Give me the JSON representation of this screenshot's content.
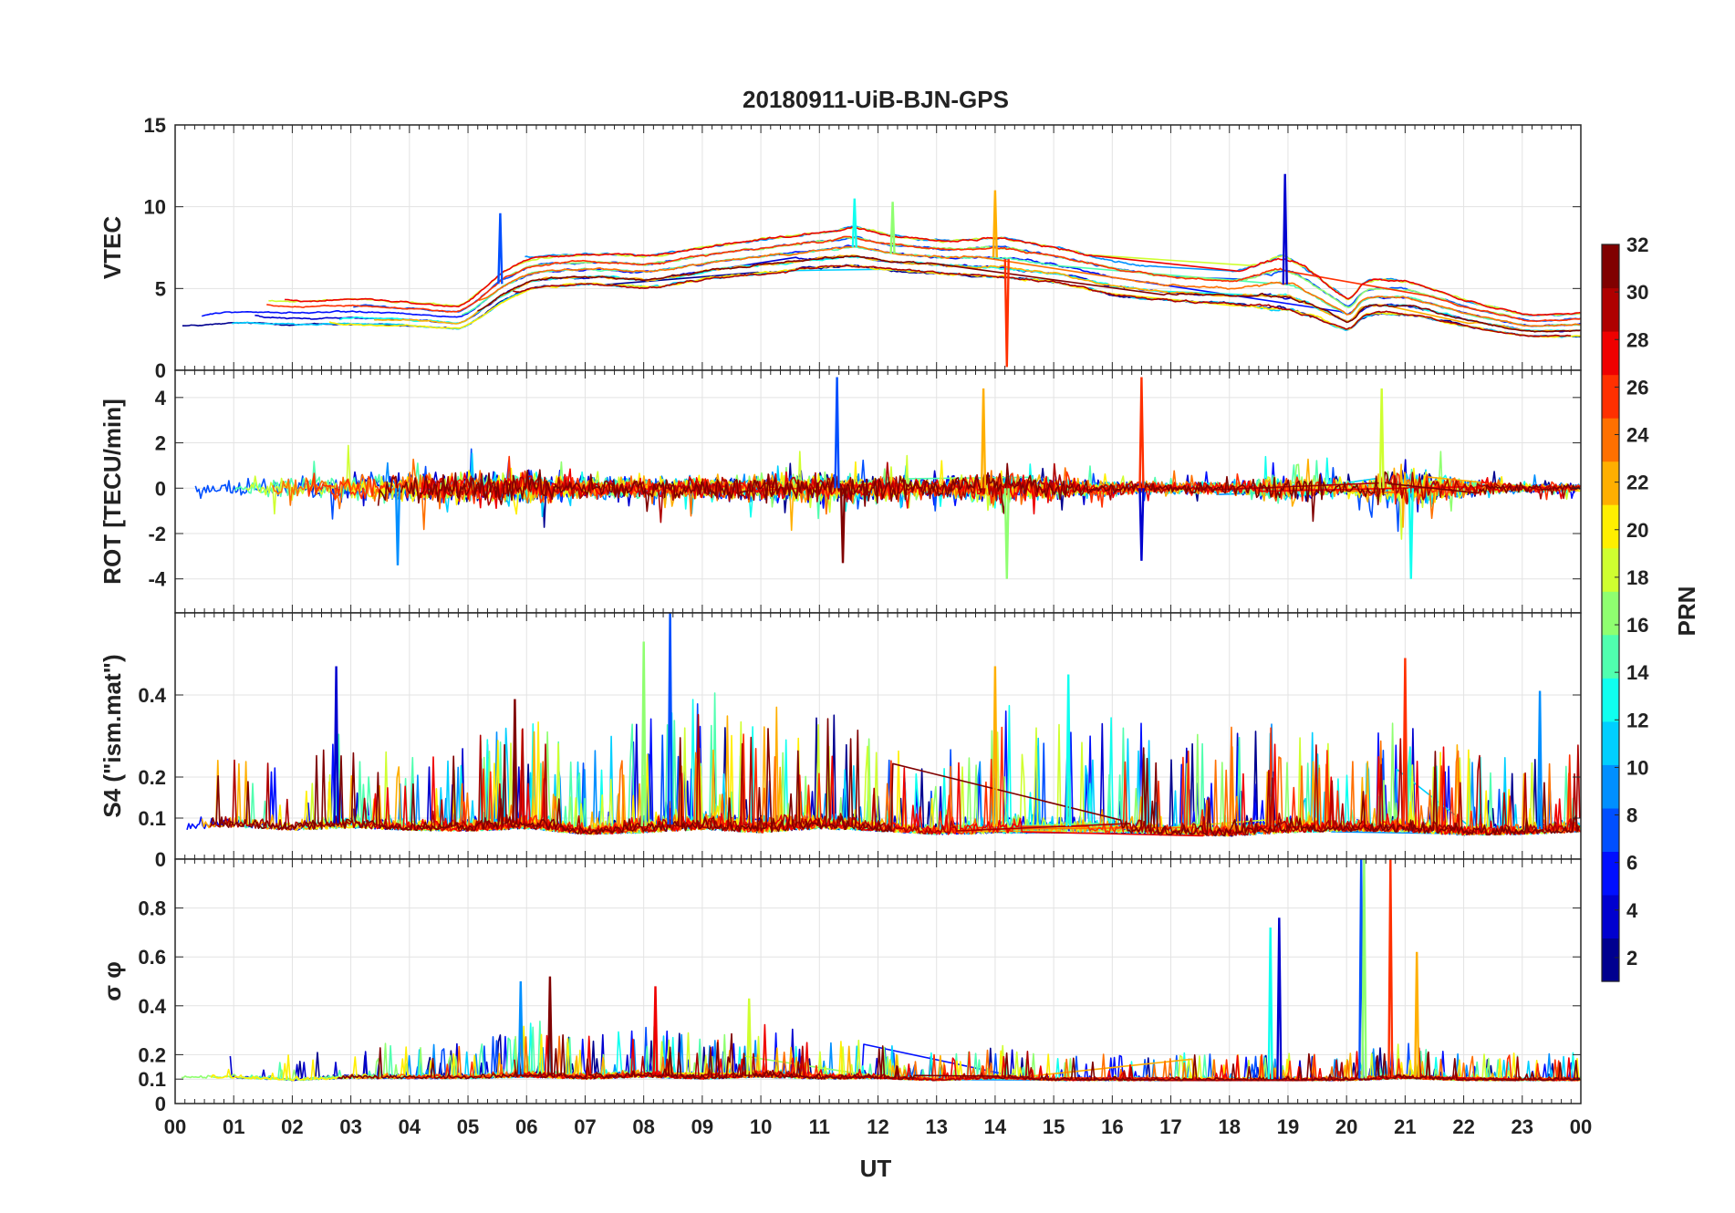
{
  "chart_data": {
    "type": "line",
    "title": "20180911-UiB-BJN-GPS",
    "xlabel": "UT",
    "x_tick_labels": [
      "00",
      "01",
      "02",
      "03",
      "04",
      "05",
      "06",
      "07",
      "08",
      "09",
      "10",
      "11",
      "12",
      "13",
      "14",
      "15",
      "16",
      "17",
      "18",
      "19",
      "20",
      "21",
      "22",
      "23",
      "00"
    ],
    "xlim": [
      0,
      24
    ],
    "grid": true,
    "colorbar": {
      "label": "PRN",
      "range": [
        1,
        32
      ],
      "ticks": [
        2,
        4,
        6,
        8,
        10,
        12,
        14,
        16,
        18,
        20,
        22,
        24,
        26,
        28,
        30,
        32
      ],
      "colormap": "jet",
      "colors": [
        "#00008f",
        "#0000cf",
        "#000fff",
        "#004fff",
        "#008fff",
        "#00cfff",
        "#10ffef",
        "#50ffaf",
        "#8fff70",
        "#cfff30",
        "#ffef00",
        "#ffaf00",
        "#ff7000",
        "#ff3000",
        "#ef0000",
        "#af0000",
        "#800000"
      ]
    },
    "panels": [
      {
        "id": "vtec",
        "ylabel": "VTEC",
        "ylim": [
          0,
          15
        ],
        "y_ticks": [
          0,
          5,
          10,
          15
        ],
        "y_tick_labels": [
          "0",
          "5",
          "10",
          "15"
        ],
        "envelope": {
          "hours": [
            0,
            1,
            2,
            3,
            4,
            4.8,
            5.5,
            6,
            7,
            8,
            9,
            10,
            11,
            11.5,
            12,
            13,
            14,
            15,
            16,
            17,
            18,
            18.8,
            19,
            20,
            20.2,
            21,
            22,
            23,
            24
          ],
          "mean": [
            3.3,
            3.6,
            3.5,
            3.6,
            3.4,
            3.2,
            5.2,
            6.0,
            6.2,
            6.0,
            6.6,
            7.0,
            7.4,
            7.6,
            7.2,
            6.9,
            6.9,
            6.4,
            5.6,
            5.2,
            5.0,
            5.4,
            5.2,
            3.2,
            4.6,
            4.4,
            3.4,
            2.7,
            2.8
          ],
          "spread": [
            0.9,
            1.0,
            1.0,
            1.1,
            1.0,
            1.0,
            1.3,
            1.3,
            1.3,
            1.4,
            1.4,
            1.5,
            1.5,
            1.7,
            1.5,
            1.4,
            1.7,
            1.5,
            1.5,
            1.4,
            1.3,
            2.4,
            2.2,
            1.2,
            1.5,
            1.4,
            1.1,
            0.9,
            1.0
          ]
        },
        "spikes": [
          {
            "hour": 5.55,
            "value": 9.6
          },
          {
            "hour": 12.25,
            "value": 10.3
          },
          {
            "hour": 14.2,
            "value": 0.2
          },
          {
            "hour": 18.95,
            "value": 12.0
          },
          {
            "hour": 11.6,
            "value": 10.5
          },
          {
            "hour": 14.0,
            "value": 11.0
          }
        ]
      },
      {
        "id": "rot",
        "ylabel": "ROT [TECU/min]",
        "ylim": [
          -5.5,
          5.2
        ],
        "y_ticks": [
          -4,
          -2,
          0,
          2,
          4
        ],
        "y_tick_labels": [
          "-4",
          "-2",
          "0",
          "2",
          "4"
        ],
        "envelope": {
          "hours": [
            0,
            1,
            2,
            3,
            4,
            5,
            6,
            7,
            8,
            9,
            10,
            11,
            12,
            13,
            14,
            15,
            16,
            17,
            18,
            19,
            20,
            21,
            22,
            23,
            24
          ],
          "mean": [
            0,
            0,
            0,
            0,
            0,
            0,
            0,
            0,
            0,
            0,
            0,
            0,
            0,
            0,
            0,
            0,
            0,
            0,
            0,
            0,
            0,
            0,
            0,
            0,
            0
          ],
          "spread": [
            0.6,
            0.6,
            0.8,
            1.0,
            1.1,
            1.1,
            1.1,
            0.8,
            0.7,
            0.8,
            0.9,
            1.1,
            0.9,
            0.6,
            1.2,
            0.8,
            0.5,
            0.4,
            0.5,
            1.1,
            0.5,
            1.4,
            0.6,
            0.3,
            0.3
          ]
        },
        "spikes": [
          {
            "hour": 11.3,
            "value": 4.9
          },
          {
            "hour": 14.2,
            "value": -4.0
          },
          {
            "hour": 16.5,
            "value": 4.9
          },
          {
            "hour": 16.5,
            "value": -3.2
          },
          {
            "hour": 21.1,
            "value": -4.0
          },
          {
            "hour": 13.8,
            "value": 4.4
          },
          {
            "hour": 11.4,
            "value": -3.3
          },
          {
            "hour": 3.8,
            "value": -3.4
          },
          {
            "hour": 20.6,
            "value": 4.4
          }
        ]
      },
      {
        "id": "s4",
        "ylabel": "S4 (\"ism.mat\")",
        "ylim": [
          0,
          0.6
        ],
        "y_ticks": [
          0,
          0.1,
          0.2,
          0.4
        ],
        "y_tick_labels": [
          "0",
          "0.1",
          "0.2",
          "0.4"
        ],
        "envelope": {
          "hours": [
            0,
            1,
            2,
            3,
            4,
            5,
            6,
            7,
            8,
            9,
            10,
            11,
            12,
            13,
            14,
            15,
            16,
            17,
            18,
            19,
            20,
            21,
            22,
            23,
            24
          ],
          "mean": [
            0.08,
            0.09,
            0.08,
            0.09,
            0.08,
            0.08,
            0.09,
            0.07,
            0.08,
            0.09,
            0.08,
            0.09,
            0.08,
            0.07,
            0.08,
            0.08,
            0.08,
            0.07,
            0.07,
            0.08,
            0.08,
            0.08,
            0.07,
            0.07,
            0.08
          ],
          "spread": [
            0.05,
            0.06,
            0.05,
            0.07,
            0.05,
            0.06,
            0.08,
            0.05,
            0.08,
            0.09,
            0.08,
            0.08,
            0.06,
            0.05,
            0.09,
            0.08,
            0.08,
            0.06,
            0.07,
            0.08,
            0.06,
            0.07,
            0.06,
            0.05,
            0.07
          ]
        },
        "spikes": [
          {
            "hour": 8.45,
            "value": 0.6
          },
          {
            "hour": 8.0,
            "value": 0.53
          },
          {
            "hour": 21.0,
            "value": 0.49
          },
          {
            "hour": 2.75,
            "value": 0.47
          },
          {
            "hour": 15.25,
            "value": 0.45
          },
          {
            "hour": 14.0,
            "value": 0.47
          },
          {
            "hour": 5.8,
            "value": 0.39
          },
          {
            "hour": 23.3,
            "value": 0.41
          }
        ]
      },
      {
        "id": "sigma_phi",
        "ylabel": "σ φ",
        "ylim": [
          0,
          1.0
        ],
        "y_ticks": [
          0,
          0.1,
          0.2,
          0.4,
          0.6,
          0.8
        ],
        "y_tick_labels": [
          "0",
          "0.1",
          "0.2",
          "0.4",
          "0.6",
          "0.8"
        ],
        "envelope": {
          "hours": [
            0,
            1,
            2,
            3,
            4,
            5,
            6,
            7,
            8,
            9,
            10,
            11,
            12,
            13,
            14,
            15,
            16,
            17,
            18,
            19,
            20,
            21,
            22,
            23,
            24
          ],
          "mean": [
            0.11,
            0.11,
            0.1,
            0.11,
            0.11,
            0.11,
            0.12,
            0.11,
            0.12,
            0.11,
            0.12,
            0.11,
            0.11,
            0.1,
            0.11,
            0.1,
            0.1,
            0.1,
            0.1,
            0.1,
            0.1,
            0.11,
            0.1,
            0.1,
            0.1
          ],
          "spread": [
            0.03,
            0.03,
            0.03,
            0.04,
            0.04,
            0.04,
            0.06,
            0.05,
            0.06,
            0.05,
            0.06,
            0.05,
            0.04,
            0.03,
            0.04,
            0.03,
            0.03,
            0.03,
            0.03,
            0.03,
            0.03,
            0.04,
            0.03,
            0.03,
            0.03
          ]
        },
        "spikes": [
          {
            "hour": 20.25,
            "value": 1.0
          },
          {
            "hour": 20.3,
            "value": 1.0
          },
          {
            "hour": 20.75,
            "value": 1.0
          },
          {
            "hour": 18.85,
            "value": 0.76
          },
          {
            "hour": 18.7,
            "value": 0.72
          },
          {
            "hour": 21.2,
            "value": 0.62
          },
          {
            "hour": 6.4,
            "value": 0.52
          },
          {
            "hour": 5.9,
            "value": 0.5
          },
          {
            "hour": 9.8,
            "value": 0.43
          },
          {
            "hour": 8.2,
            "value": 0.48
          }
        ]
      }
    ]
  }
}
